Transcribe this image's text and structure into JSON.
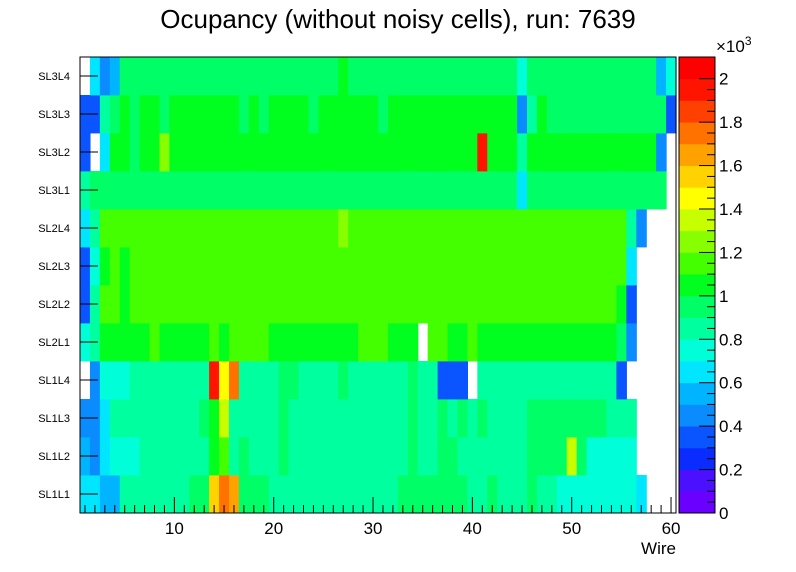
{
  "chart_data": {
    "type": "heatmap",
    "title": "Ocupancy (without noisy cells), run: 7639",
    "xlabel": "Wire",
    "ylabel": "",
    "xlim": [
      0.5,
      60.5
    ],
    "x_ticks": [
      "10",
      "20",
      "30",
      "40",
      "50",
      "60"
    ],
    "rows": [
      "SL1L1",
      "SL1L2",
      "SL1L3",
      "SL1L4",
      "SL2L1",
      "SL2L2",
      "SL2L3",
      "SL2L4",
      "SL3L1",
      "SL3L2",
      "SL3L3",
      "SL3L4"
    ],
    "colorbar": {
      "min": 0,
      "max": 2100,
      "exponent_label": "×10",
      "exponent_power": "3",
      "ticks": [
        "0",
        "0.2",
        "0.4",
        "0.6",
        "0.8",
        "1",
        "1.2",
        "1.4",
        "1.6",
        "1.8",
        "2"
      ],
      "colors": [
        "#6a00ff",
        "#4a10ff",
        "#0a2cff",
        "#0a55ff",
        "#0a8cff",
        "#00b4ff",
        "#00e6ff",
        "#00ffd8",
        "#00ff9f",
        "#00ff66",
        "#00ff1e",
        "#44ff00",
        "#88ff00",
        "#c8ff00",
        "#ffff00",
        "#ffd200",
        "#ffa200",
        "#ff7200",
        "#ff4000",
        "#ff1400",
        "#ff0000"
      ]
    },
    "z": [
      [
        650,
        650,
        550,
        550,
        800,
        800,
        800,
        800,
        800,
        800,
        800,
        900,
        950,
        1500,
        1700,
        1600,
        900,
        900,
        900,
        850,
        850,
        850,
        850,
        850,
        850,
        850,
        850,
        850,
        850,
        850,
        850,
        850,
        900,
        950,
        900,
        900,
        950,
        900,
        900,
        850,
        850,
        900,
        850,
        850,
        850,
        900,
        850,
        800,
        750,
        750,
        750,
        750,
        700,
        750,
        750,
        700,
        600,
        0,
        0,
        0
      ],
      [
        500,
        450,
        650,
        700,
        750,
        750,
        800,
        800,
        850,
        850,
        850,
        850,
        850,
        1000,
        1100,
        850,
        900,
        850,
        850,
        850,
        900,
        850,
        850,
        850,
        850,
        850,
        850,
        850,
        850,
        850,
        850,
        850,
        850,
        900,
        850,
        850,
        900,
        900,
        850,
        850,
        850,
        850,
        850,
        850,
        850,
        900,
        900,
        900,
        900,
        1300,
        900,
        750,
        750,
        750,
        750,
        750,
        0,
        0,
        0,
        0
      ],
      [
        450,
        400,
        650,
        800,
        850,
        850,
        850,
        850,
        850,
        850,
        850,
        850,
        900,
        1050,
        1300,
        850,
        850,
        850,
        850,
        850,
        900,
        850,
        850,
        850,
        850,
        850,
        850,
        850,
        850,
        850,
        850,
        850,
        850,
        900,
        850,
        850,
        900,
        850,
        900,
        850,
        900,
        850,
        850,
        850,
        850,
        900,
        900,
        900,
        900,
        900,
        900,
        900,
        900,
        850,
        850,
        800,
        0,
        0,
        0,
        0
      ],
      [
        0,
        450,
        700,
        750,
        750,
        800,
        800,
        800,
        850,
        850,
        850,
        850,
        850,
        1900,
        1450,
        1700,
        850,
        850,
        850,
        850,
        900,
        900,
        850,
        850,
        850,
        850,
        900,
        850,
        850,
        850,
        850,
        850,
        850,
        900,
        850,
        850,
        300,
        300,
        300,
        0,
        850,
        850,
        850,
        850,
        850,
        850,
        850,
        850,
        850,
        850,
        850,
        850,
        850,
        850,
        350,
        0,
        0,
        0,
        0,
        0
      ],
      [
        700,
        800,
        1000,
        1000,
        1050,
        1050,
        1000,
        1100,
        1050,
        1050,
        1000,
        1050,
        1050,
        1100,
        1050,
        1100,
        1100,
        1100,
        1100,
        1050,
        1050,
        1050,
        1050,
        1050,
        1050,
        1050,
        1050,
        1050,
        1100,
        1100,
        1100,
        1050,
        1050,
        1050,
        0,
        1100,
        1100,
        1050,
        1050,
        1100,
        1050,
        1050,
        1050,
        1050,
        1050,
        1050,
        1050,
        1050,
        1050,
        1050,
        1050,
        1000,
        1000,
        1000,
        900,
        400,
        0,
        0,
        0,
        0
      ],
      [
        350,
        800,
        1100,
        1150,
        1050,
        1100,
        1100,
        1100,
        1100,
        1100,
        1100,
        1150,
        1100,
        1100,
        1150,
        1100,
        1100,
        1100,
        1100,
        1100,
        1100,
        1150,
        1150,
        1100,
        1100,
        1100,
        1100,
        1100,
        1100,
        1100,
        1100,
        1100,
        1100,
        1100,
        1100,
        1150,
        1100,
        1100,
        1100,
        1100,
        1100,
        1100,
        1100,
        1100,
        1100,
        1150,
        1100,
        1100,
        1100,
        1100,
        1100,
        1100,
        1100,
        1100,
        1050,
        350,
        0,
        0,
        0,
        0
      ],
      [
        350,
        700,
        1050,
        1100,
        1050,
        1100,
        1100,
        1100,
        1100,
        1150,
        1100,
        1100,
        1100,
        1100,
        1150,
        1100,
        1100,
        1100,
        1100,
        1100,
        1150,
        1150,
        1100,
        1150,
        1100,
        1100,
        1100,
        1100,
        1150,
        1150,
        1100,
        1100,
        1100,
        1100,
        1100,
        1150,
        1100,
        1100,
        1100,
        1100,
        1100,
        1100,
        1100,
        1100,
        1100,
        1100,
        1100,
        1100,
        1100,
        1100,
        1100,
        1100,
        1100,
        1100,
        1100,
        650,
        0,
        0,
        0,
        0
      ],
      [
        600,
        800,
        1100,
        1100,
        1150,
        1150,
        1100,
        1150,
        1150,
        1100,
        1150,
        1150,
        1150,
        1150,
        1150,
        1100,
        1100,
        1100,
        1150,
        1100,
        1150,
        1150,
        1150,
        1150,
        1100,
        1150,
        1250,
        1150,
        1150,
        1150,
        1150,
        1150,
        1100,
        1100,
        1150,
        1100,
        1150,
        1150,
        1100,
        1100,
        1100,
        1100,
        1100,
        1100,
        1100,
        1100,
        1100,
        1100,
        1100,
        1100,
        1100,
        1100,
        1100,
        1100,
        1100,
        800,
        400,
        0,
        0,
        0
      ],
      [
        850,
        900,
        950,
        900,
        900,
        950,
        900,
        900,
        900,
        950,
        900,
        950,
        950,
        950,
        950,
        950,
        950,
        950,
        900,
        950,
        900,
        950,
        950,
        950,
        900,
        950,
        900,
        950,
        900,
        950,
        900,
        950,
        900,
        900,
        950,
        900,
        950,
        950,
        900,
        950,
        900,
        950,
        950,
        900,
        600,
        900,
        950,
        950,
        900,
        950,
        900,
        950,
        950,
        900,
        900,
        900,
        900,
        950,
        900,
        0
      ],
      [
        300,
        0,
        650,
        1000,
        1000,
        950,
        1000,
        1000,
        1200,
        1000,
        1000,
        1000,
        1050,
        1050,
        1000,
        1000,
        1050,
        1050,
        1050,
        1050,
        1050,
        1050,
        1050,
        1050,
        1050,
        1050,
        1050,
        1050,
        1050,
        1050,
        1050,
        1000,
        1000,
        1000,
        1050,
        1050,
        1000,
        1000,
        1050,
        1050,
        1900,
        1000,
        1050,
        1050,
        800,
        1000,
        1000,
        1000,
        1000,
        1000,
        1000,
        1000,
        1000,
        1000,
        1000,
        1000,
        1000,
        1000,
        400,
        0
      ],
      [
        350,
        350,
        850,
        950,
        1000,
        950,
        1000,
        1000,
        950,
        1000,
        1000,
        1000,
        1000,
        1000,
        1000,
        1000,
        950,
        1000,
        950,
        1000,
        1000,
        1000,
        1000,
        950,
        1000,
        1000,
        1000,
        1000,
        1000,
        1000,
        950,
        1000,
        1000,
        1000,
        1000,
        1000,
        1000,
        1000,
        1000,
        1000,
        1000,
        1000,
        1050,
        1000,
        400,
        850,
        1000,
        950,
        950,
        950,
        950,
        950,
        900,
        950,
        900,
        950,
        950,
        950,
        950,
        350
      ],
      [
        0,
        650,
        400,
        500,
        950,
        950,
        950,
        950,
        950,
        950,
        950,
        950,
        950,
        950,
        950,
        950,
        950,
        950,
        950,
        950,
        950,
        950,
        950,
        950,
        950,
        950,
        1000,
        950,
        950,
        950,
        950,
        950,
        950,
        950,
        950,
        950,
        950,
        950,
        950,
        950,
        950,
        950,
        950,
        950,
        700,
        950,
        950,
        950,
        950,
        950,
        950,
        950,
        950,
        950,
        950,
        950,
        950,
        950,
        500,
        700
      ]
    ]
  }
}
